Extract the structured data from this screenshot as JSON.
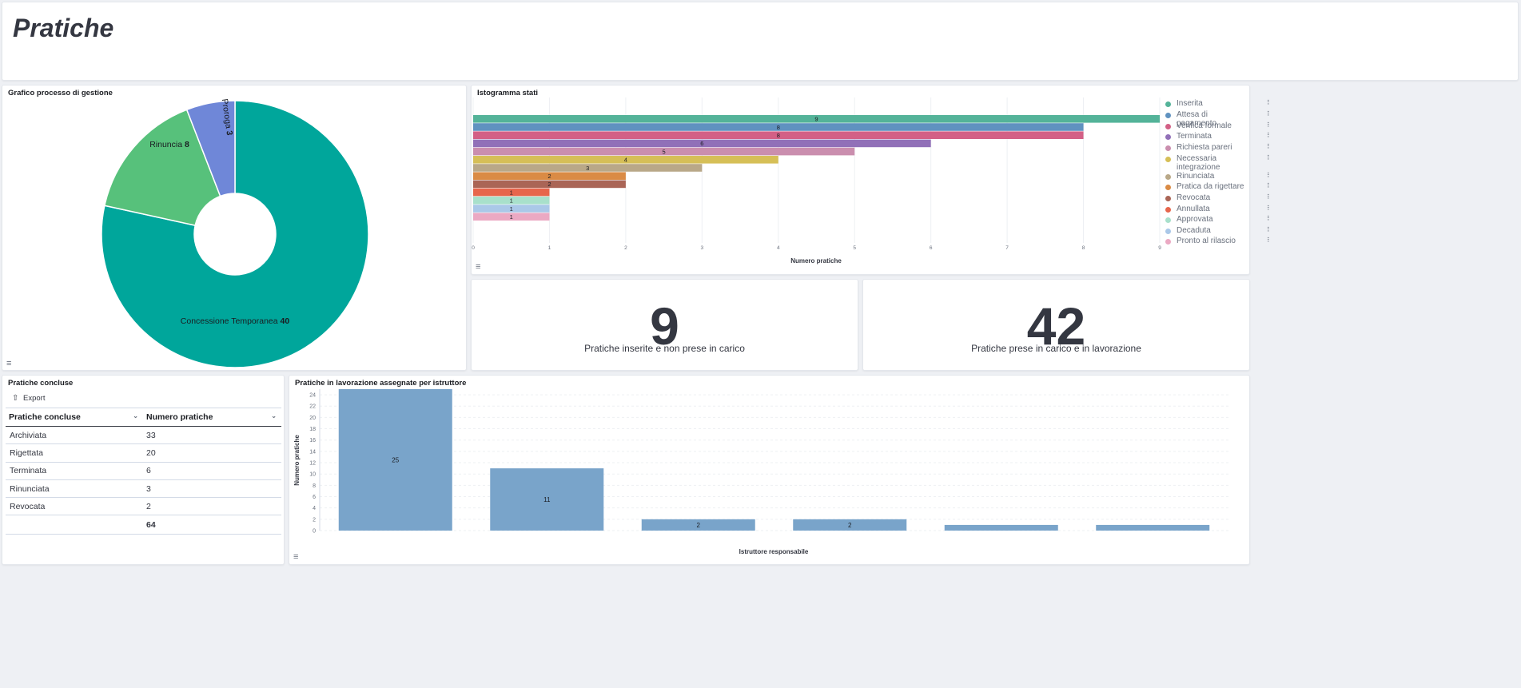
{
  "page": {
    "title": "Pratiche"
  },
  "donut": {
    "title": "Grafico processo di gestione",
    "chart_data": {
      "type": "pie",
      "title": "Grafico processo di gestione",
      "slices": [
        {
          "label": "Concessione Temporanea",
          "value": 40,
          "color": "#00a69b"
        },
        {
          "label": "Rinuncia",
          "value": 8,
          "color": "#57c17b"
        },
        {
          "label": "Proroga",
          "value": 3,
          "color": "#6f87d8"
        }
      ]
    }
  },
  "istogramma": {
    "title": "Istogramma stati",
    "chart_data": {
      "type": "bar",
      "orientation": "horizontal",
      "title": "Istogramma stati",
      "xlabel": "Numero pratiche",
      "xlim": [
        0,
        9
      ],
      "ticks": [
        "0",
        "1",
        "2",
        "3",
        "4",
        "5",
        "6",
        "7",
        "8",
        "9"
      ],
      "series": [
        {
          "name": "Inserita",
          "value": 9,
          "color": "#54b399"
        },
        {
          "name": "Attesa di pagamento",
          "value": 8,
          "color": "#6092c0"
        },
        {
          "name": "Verifica formale",
          "value": 8,
          "color": "#d36086"
        },
        {
          "name": "Terminata",
          "value": 6,
          "color": "#9170b8"
        },
        {
          "name": "Richiesta pareri",
          "value": 5,
          "color": "#ca8eae"
        },
        {
          "name": "Necessaria integrazione",
          "value": 4,
          "color": "#d6bf57"
        },
        {
          "name": "Rinunciata",
          "value": 3,
          "color": "#b9a888"
        },
        {
          "name": "Pratica da rigettare",
          "value": 2,
          "color": "#da8b45"
        },
        {
          "name": "Revocata",
          "value": 2,
          "color": "#aa6556"
        },
        {
          "name": "Annullata",
          "value": 1,
          "color": "#e7664c"
        },
        {
          "name": "Approvata",
          "value": 1,
          "color": "#a8e0cb"
        },
        {
          "name": "Decaduta",
          "value": 1,
          "color": "#aac8e8"
        },
        {
          "name": "Pronto al rilascio",
          "value": 1,
          "color": "#eba9c3"
        }
      ]
    }
  },
  "metric1": {
    "value": "9",
    "label": "Pratiche inserite e non prese in carico"
  },
  "metric2": {
    "value": "42",
    "label": "Pratiche prese in carico e in lavorazione"
  },
  "concluse": {
    "title": "Pratiche concluse",
    "export_label": "Export",
    "col1": "Pratiche concluse",
    "col2": "Numero pratiche",
    "rows": [
      {
        "name": "Archiviata",
        "value": "33"
      },
      {
        "name": "Rigettata",
        "value": "20"
      },
      {
        "name": "Terminata",
        "value": "6"
      },
      {
        "name": "Rinunciata",
        "value": "3"
      },
      {
        "name": "Revocata",
        "value": "2"
      }
    ],
    "total": "64"
  },
  "istruttore": {
    "title": "Pratiche in lavorazione assegnate per istruttore",
    "chart_data": {
      "type": "bar",
      "title": "Pratiche in lavorazione assegnate per istruttore",
      "xlabel": "Istruttore responsabile",
      "ylabel": "Numero pratiche",
      "ylim": [
        0,
        25
      ],
      "yticks": [
        0,
        2,
        4,
        6,
        8,
        10,
        12,
        14,
        16,
        18,
        20,
        22,
        24
      ],
      "values": [
        25,
        11,
        2,
        2,
        1,
        1
      ],
      "data_labels": [
        "25",
        "11",
        "2",
        "2",
        "",
        ""
      ],
      "color": "#79a4ca"
    }
  }
}
